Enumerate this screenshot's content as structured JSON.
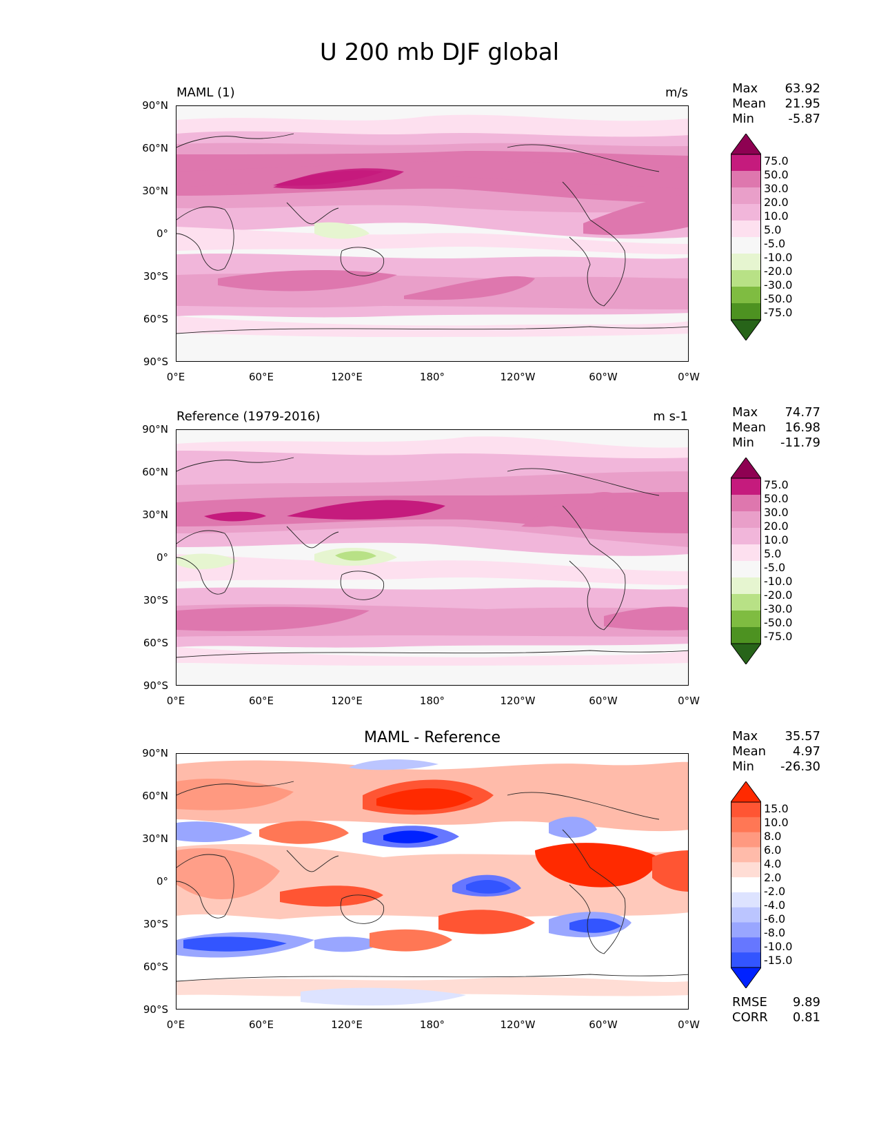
{
  "figure": {
    "title": "U 200 mb DJF global"
  },
  "axes": {
    "lat_labels": [
      "90°N",
      "60°N",
      "30°N",
      "0°",
      "30°S",
      "60°S",
      "90°S"
    ],
    "lon_labels": [
      "0°E",
      "60°E",
      "120°E",
      "180°",
      "120°W",
      "60°W",
      "0°W"
    ]
  },
  "panels": [
    {
      "id": "test",
      "left_title": "MAML (1)",
      "right_title": "m/s",
      "center_title": "",
      "stats": {
        "max_label": "Max",
        "max": "63.92",
        "mean_label": "Mean",
        "mean": "21.95",
        "min_label": "Min",
        "min": "-5.87"
      },
      "colorbar": {
        "labels": [
          "75.0",
          "50.0",
          "30.0",
          "20.0",
          "10.0",
          "5.0",
          "-5.0",
          "-10.0",
          "-20.0",
          "-30.0",
          "-50.0",
          "-75.0"
        ],
        "colors": [
          "#8e0152",
          "#c51b7d",
          "#de77ae",
          "#e99fc9",
          "#f1b6da",
          "#fde0ef",
          "#f7f7f7",
          "#e6f5d0",
          "#b8e186",
          "#7fbc41",
          "#4d9221",
          "#276419"
        ]
      },
      "metrics": null
    },
    {
      "id": "reference",
      "left_title": "Reference (1979-2016)",
      "right_title": "m s-1",
      "center_title": "",
      "stats": {
        "max_label": "Max",
        "max": "74.77",
        "mean_label": "Mean",
        "mean": "16.98",
        "min_label": "Min",
        "min": "-11.79"
      },
      "colorbar": {
        "labels": [
          "75.0",
          "50.0",
          "30.0",
          "20.0",
          "10.0",
          "5.0",
          "-5.0",
          "-10.0",
          "-20.0",
          "-30.0",
          "-50.0",
          "-75.0"
        ],
        "colors": [
          "#8e0152",
          "#c51b7d",
          "#de77ae",
          "#e99fc9",
          "#f1b6da",
          "#fde0ef",
          "#f7f7f7",
          "#e6f5d0",
          "#b8e186",
          "#7fbc41",
          "#4d9221",
          "#276419"
        ]
      },
      "metrics": null
    },
    {
      "id": "difference",
      "left_title": "",
      "right_title": "",
      "center_title": "MAML - Reference",
      "stats": {
        "max_label": "Max",
        "max": "35.57",
        "mean_label": "Mean",
        "mean": "4.97",
        "min_label": "Min",
        "min": "-26.30"
      },
      "colorbar": {
        "labels": [
          "15.0",
          "10.0",
          "8.0",
          "6.0",
          "4.0",
          "2.0",
          "-2.0",
          "-4.0",
          "-6.0",
          "-8.0",
          "-10.0",
          "-15.0"
        ],
        "colors": [
          "#ff2a00",
          "#ff5533",
          "#ff7755",
          "#ff9980",
          "#ffbbaa",
          "#ffddd5",
          "#ffffff",
          "#dde3ff",
          "#bbc5ff",
          "#99a6ff",
          "#6677ff",
          "#3355ff",
          "#0022ff"
        ]
      },
      "metrics": {
        "rmse_label": "RMSE",
        "rmse": "9.89",
        "corr_label": "CORR",
        "corr": "0.81"
      }
    }
  ]
}
